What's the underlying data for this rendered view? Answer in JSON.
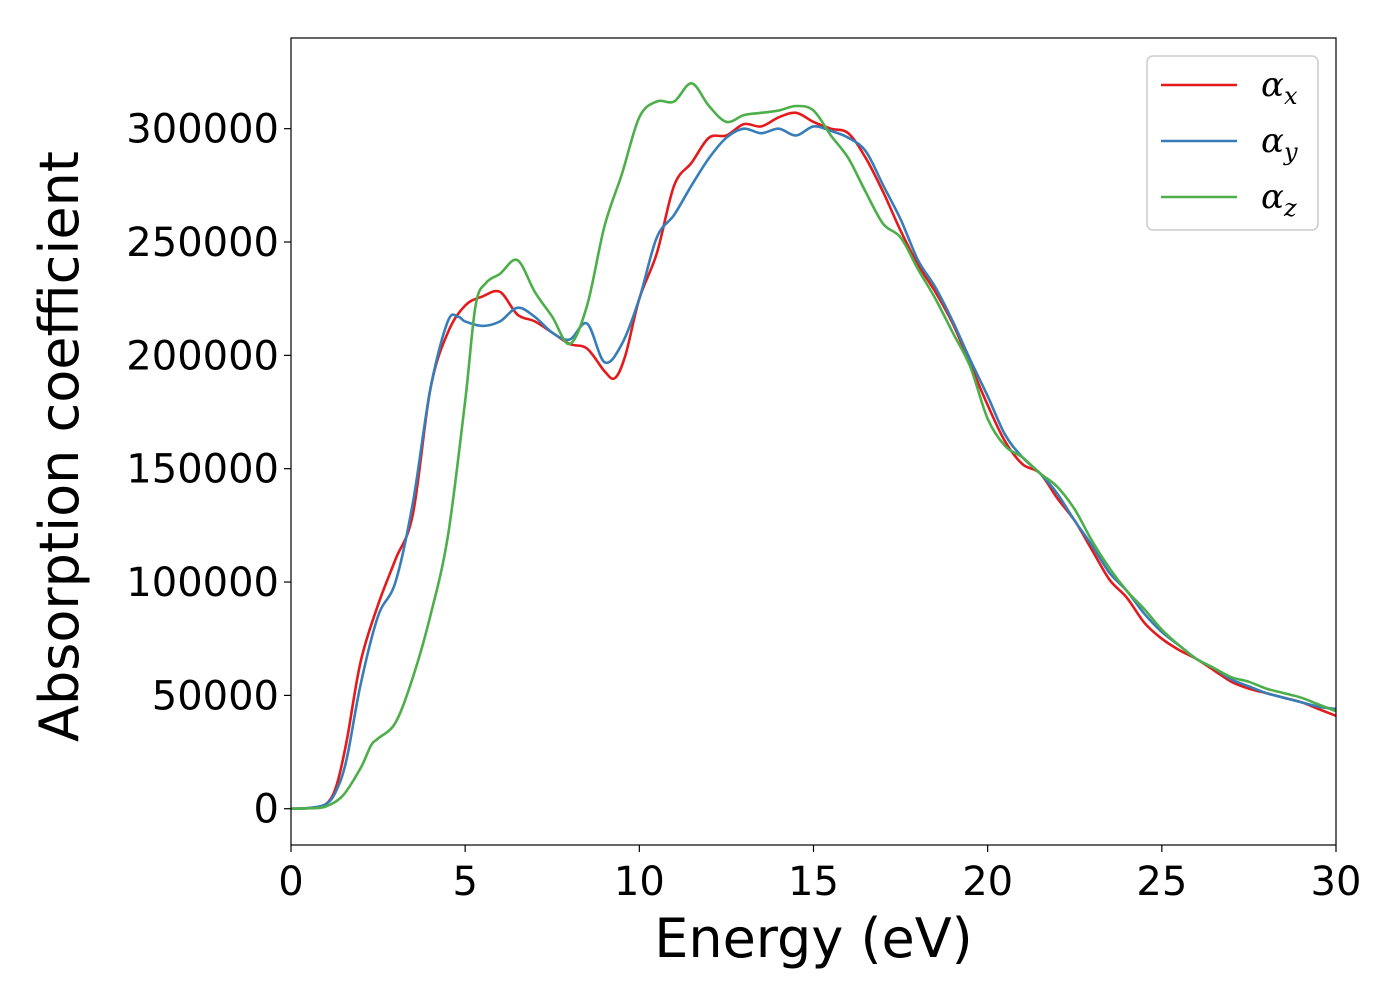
{
  "chart_data": {
    "type": "line",
    "xlabel": "Energy (eV)",
    "ylabel": "Absorption coefficient",
    "xlim": [
      0,
      30
    ],
    "ylim": [
      -16000,
      340000
    ],
    "xticks": [
      "0",
      "5",
      "10",
      "15",
      "20",
      "25",
      "30"
    ],
    "yticks": [
      "0",
      "50000",
      "100000",
      "150000",
      "200000",
      "250000",
      "300000"
    ],
    "grid": false,
    "legend_position": "top-right",
    "series": [
      {
        "name": "αx",
        "symbol": "α",
        "subscript": "x",
        "color": "#e41a1c",
        "x": [
          0,
          0.5,
          1.0,
          1.3,
          1.6,
          2.0,
          2.5,
          3.0,
          3.5,
          4.0,
          4.5,
          5.0,
          5.5,
          6.0,
          6.5,
          7.0,
          7.5,
          8.0,
          8.5,
          9.0,
          9.3,
          9.6,
          10.0,
          10.5,
          11.0,
          11.5,
          12.0,
          12.5,
          13.0,
          13.5,
          14.0,
          14.5,
          15.0,
          15.5,
          16.0,
          16.5,
          17.0,
          17.5,
          18.0,
          18.5,
          19.0,
          19.5,
          20.0,
          20.5,
          21.0,
          21.5,
          22.0,
          22.5,
          23.0,
          23.5,
          24.0,
          24.5,
          25.0,
          25.5,
          26.0,
          26.5,
          27.0,
          27.5,
          28.0,
          28.5,
          29.0,
          29.5,
          30.0
        ],
        "y": [
          0,
          300,
          2000,
          10000,
          30000,
          65000,
          90000,
          110000,
          130000,
          185000,
          210000,
          222000,
          226000,
          228000,
          218000,
          215000,
          210000,
          205000,
          203000,
          193000,
          190000,
          200000,
          225000,
          245000,
          275000,
          285000,
          296000,
          297000,
          302000,
          301000,
          305000,
          307000,
          303000,
          300000,
          298000,
          287000,
          272000,
          255000,
          240000,
          228000,
          214000,
          196000,
          178000,
          162000,
          152000,
          148000,
          137000,
          127000,
          114000,
          101000,
          93000,
          82000,
          75000,
          70000,
          66000,
          61000,
          56000,
          53000,
          51000,
          49000,
          47000,
          44000,
          41000
        ]
      },
      {
        "name": "αy",
        "symbol": "α",
        "subscript": "y",
        "color": "#377eb8",
        "x": [
          0,
          0.5,
          1.0,
          1.3,
          1.6,
          2.0,
          2.5,
          3.0,
          3.5,
          4.0,
          4.5,
          4.8,
          5.0,
          5.5,
          6.0,
          6.5,
          7.0,
          7.5,
          8.0,
          8.5,
          9.0,
          9.5,
          10.0,
          10.5,
          11.0,
          11.5,
          12.0,
          12.5,
          13.0,
          13.5,
          14.0,
          14.5,
          15.0,
          15.5,
          16.0,
          16.5,
          17.0,
          17.5,
          18.0,
          18.5,
          19.0,
          19.5,
          20.0,
          20.5,
          21.0,
          21.5,
          22.0,
          22.5,
          23.0,
          23.5,
          24.0,
          24.5,
          25.0,
          25.5,
          26.0,
          26.5,
          27.0,
          27.5,
          28.0,
          28.5,
          29.0,
          29.5,
          30.0
        ],
        "y": [
          0,
          300,
          2000,
          8000,
          22000,
          55000,
          85000,
          100000,
          135000,
          185000,
          215000,
          217000,
          215000,
          213000,
          215000,
          221000,
          217000,
          210000,
          207000,
          214000,
          197000,
          205000,
          225000,
          252000,
          262000,
          275000,
          287000,
          296000,
          300000,
          298000,
          300000,
          297000,
          301000,
          299000,
          296000,
          290000,
          275000,
          260000,
          242000,
          230000,
          215000,
          198000,
          182000,
          165000,
          155000,
          148000,
          139000,
          127000,
          116000,
          104000,
          96000,
          86000,
          78000,
          72000,
          66000,
          62000,
          57000,
          54000,
          51000,
          49000,
          47000,
          45000,
          44000
        ]
      },
      {
        "name": "αz",
        "symbol": "α",
        "subscript": "z",
        "color": "#4daf4a",
        "x": [
          0,
          0.5,
          1.0,
          1.5,
          2.0,
          2.3,
          2.5,
          3.0,
          3.5,
          4.0,
          4.5,
          5.0,
          5.3,
          5.6,
          6.0,
          6.5,
          7.0,
          7.5,
          8.0,
          8.5,
          9.0,
          9.5,
          10.0,
          10.5,
          11.0,
          11.5,
          12.0,
          12.5,
          13.0,
          13.5,
          14.0,
          14.5,
          15.0,
          15.5,
          16.0,
          16.5,
          17.0,
          17.5,
          18.0,
          18.5,
          19.0,
          19.5,
          20.0,
          20.5,
          21.0,
          21.5,
          22.0,
          22.5,
          23.0,
          23.5,
          24.0,
          24.5,
          25.0,
          25.5,
          26.0,
          26.5,
          27.0,
          27.5,
          28.0,
          28.5,
          29.0,
          29.5,
          30.0
        ],
        "y": [
          0,
          200,
          1000,
          6000,
          18000,
          28000,
          31000,
          38000,
          58000,
          85000,
          120000,
          180000,
          222000,
          232000,
          236000,
          242000,
          228000,
          217000,
          205000,
          222000,
          257000,
          280000,
          305000,
          312000,
          312000,
          320000,
          310000,
          303000,
          306000,
          307000,
          308000,
          310000,
          308000,
          297000,
          287000,
          272000,
          258000,
          252000,
          238000,
          225000,
          210000,
          195000,
          172000,
          160000,
          155000,
          148000,
          142000,
          132000,
          118000,
          106000,
          96000,
          88000,
          79000,
          72000,
          66000,
          62000,
          58000,
          56000,
          53000,
          51000,
          49000,
          46000,
          43000
        ]
      }
    ]
  }
}
